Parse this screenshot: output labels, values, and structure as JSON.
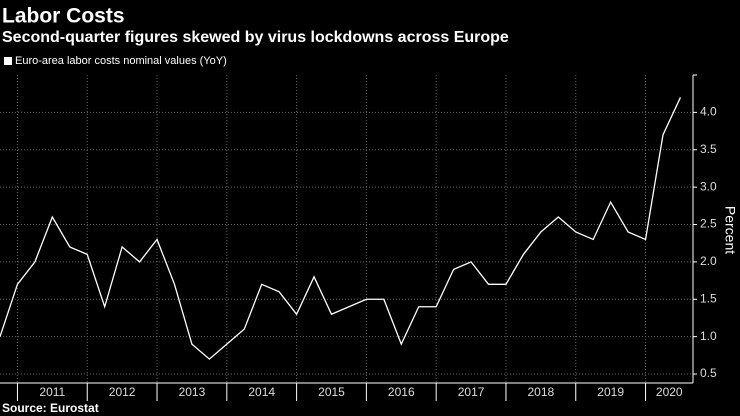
{
  "chart_data": {
    "type": "line",
    "title": "Labor Costs",
    "subtitle": "Second-quarter figures skewed by virus lockdowns across Europe",
    "y_label": "Percent",
    "source": "Source: Eurostat",
    "x": [
      2010.75,
      2011,
      2011.25,
      2011.5,
      2011.75,
      2012,
      2012.25,
      2012.5,
      2012.75,
      2013,
      2013.25,
      2013.5,
      2013.75,
      2014,
      2014.25,
      2014.5,
      2014.75,
      2015,
      2015.25,
      2015.5,
      2015.75,
      2016,
      2016.25,
      2016.5,
      2016.75,
      2017,
      2017.25,
      2017.5,
      2017.75,
      2018,
      2018.25,
      2018.5,
      2018.75,
      2019,
      2019.25,
      2019.5,
      2019.75,
      2020,
      2020.25,
      2020.5
    ],
    "series": [
      {
        "name": "Euro-area labor costs nominal values (YoY)",
        "color": "#ffffff",
        "values": [
          1.0,
          1.7,
          2.0,
          2.6,
          2.2,
          2.1,
          1.4,
          2.2,
          2.0,
          2.3,
          1.7,
          0.9,
          0.7,
          0.9,
          1.1,
          1.7,
          1.6,
          1.3,
          1.8,
          1.3,
          1.4,
          1.5,
          1.5,
          0.9,
          1.4,
          1.4,
          1.9,
          2.0,
          1.7,
          1.7,
          2.1,
          2.4,
          2.6,
          2.4,
          2.3,
          2.8,
          2.4,
          2.3,
          3.7,
          4.2
        ]
      }
    ],
    "xlim": [
      2010.75,
      2020.68
    ],
    "xticks": [
      2011,
      2012,
      2013,
      2014,
      2015,
      2016,
      2017,
      2018,
      2019,
      2020
    ],
    "ylim": [
      0.38,
      4.5
    ],
    "yticks": [
      0.5,
      {
        "value": 1,
        "label": "1.0"
      },
      1.5,
      {
        "value": 2,
        "label": "2.0"
      },
      2.5,
      {
        "value": 3,
        "label": "3.0"
      },
      3.5,
      {
        "value": 4,
        "label": "4.0"
      }
    ],
    "grid": true
  }
}
